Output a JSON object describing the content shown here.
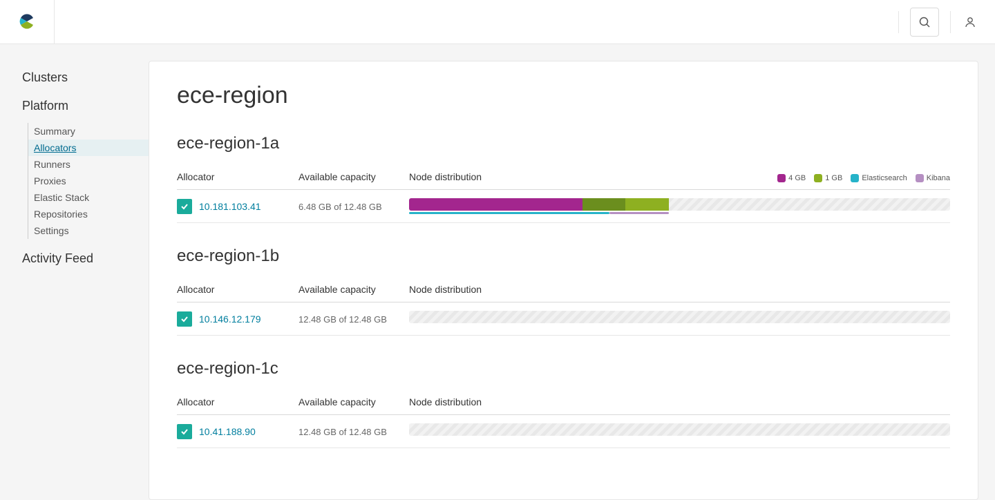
{
  "colors": {
    "size4gb": "#a3268e",
    "size1gb": "#8eb021",
    "size1gb_dark": "#6b8e1e",
    "elasticsearch": "#26b3c9",
    "kibana": "#b58fc2",
    "status_ok": "#1aab9b",
    "link": "#007e9e",
    "panel_border": "#e6e6e6",
    "body_bg": "#f5f5f5"
  },
  "nav": {
    "clusters": "Clusters",
    "platform": "Platform",
    "sub": {
      "summary": "Summary",
      "allocators": "Allocators",
      "runners": "Runners",
      "proxies": "Proxies",
      "elastic_stack": "Elastic Stack",
      "repositories": "Repositories",
      "settings": "Settings"
    },
    "activity_feed": "Activity Feed"
  },
  "page": {
    "title": "ece-region"
  },
  "columns": {
    "allocator": "Allocator",
    "capacity": "Available capacity",
    "distribution": "Node distribution"
  },
  "legend": {
    "size4": "4 GB",
    "size1": "1 GB",
    "elasticsearch": "Elasticsearch",
    "kibana": "Kibana"
  },
  "zones": [
    {
      "name": "ece-region-1a",
      "show_legend": true,
      "allocators": [
        {
          "ip": "10.181.103.41",
          "capacity": "6.48 GB of 12.48 GB",
          "segments": [
            {
              "width_pct": 32.0,
              "color": "#a3268e"
            },
            {
              "width_pct": 8.0,
              "color": "#6b8e1e"
            },
            {
              "width_pct": 8.0,
              "color": "#8eb021"
            }
          ],
          "underlines": [
            {
              "left_pct": 0.0,
              "width_pct": 37.0,
              "color": "#26b3c9"
            },
            {
              "left_pct": 37.0,
              "width_pct": 11.0,
              "color": "#b58fc2"
            }
          ]
        }
      ]
    },
    {
      "name": "ece-region-1b",
      "show_legend": false,
      "allocators": [
        {
          "ip": "10.146.12.179",
          "capacity": "12.48 GB of 12.48 GB",
          "segments": [],
          "underlines": []
        }
      ]
    },
    {
      "name": "ece-region-1c",
      "show_legend": false,
      "allocators": [
        {
          "ip": "10.41.188.90",
          "capacity": "12.48 GB of 12.48 GB",
          "segments": [],
          "underlines": []
        }
      ]
    }
  ]
}
